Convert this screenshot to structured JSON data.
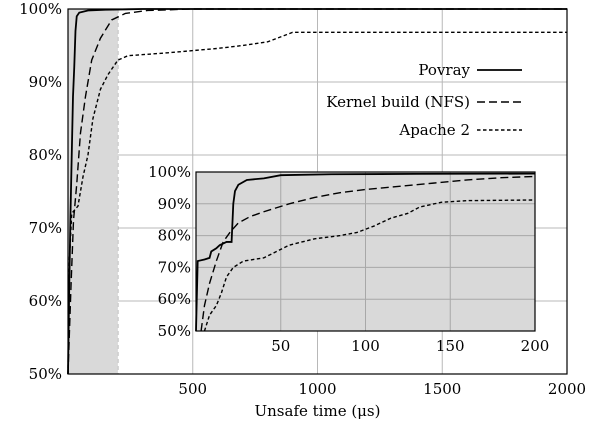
{
  "chart_data": {
    "type": "line",
    "title": "",
    "xlabel": "Unsafe time (μs)",
    "ylabel": "",
    "xlim": [
      0,
      2000
    ],
    "ylim": [
      50,
      100
    ],
    "x_ticks": [
      500,
      1000,
      1500,
      2000
    ],
    "y_ticks": [
      50,
      60,
      70,
      80,
      90,
      100
    ],
    "x_tick_labels": [
      "500",
      "1000",
      "1500",
      "2000"
    ],
    "y_tick_labels": [
      "50%",
      "60%",
      "70%",
      "80%",
      "90%",
      "100%"
    ],
    "grid": true,
    "legend_position": "right",
    "shaded_region": {
      "x": [
        0,
        200
      ],
      "color": "#d9d9d9"
    },
    "series": [
      {
        "name": "Povray",
        "style": "solid",
        "points": [
          [
            0,
            50
          ],
          [
            5,
            62
          ],
          [
            10,
            72
          ],
          [
            15,
            80
          ],
          [
            20,
            88
          ],
          [
            25,
            92
          ],
          [
            30,
            97
          ],
          [
            35,
            99
          ],
          [
            45,
            99.5
          ],
          [
            80,
            99.8
          ],
          [
            150,
            99.9
          ],
          [
            300,
            100
          ],
          [
            2000,
            100
          ]
        ]
      },
      {
        "name": "Kernel build (NFS)",
        "style": "dashed",
        "points": [
          [
            0,
            50
          ],
          [
            12,
            62
          ],
          [
            22,
            71
          ],
          [
            35,
            76
          ],
          [
            50,
            83
          ],
          [
            70,
            88
          ],
          [
            95,
            93
          ],
          [
            130,
            96
          ],
          [
            175,
            98.5
          ],
          [
            230,
            99.4
          ],
          [
            320,
            99.8
          ],
          [
            500,
            100
          ],
          [
            2000,
            100
          ]
        ]
      },
      {
        "name": "Apache 2",
        "style": "dotted",
        "points": [
          [
            0,
            50
          ],
          [
            6,
            66
          ],
          [
            15,
            72
          ],
          [
            40,
            73
          ],
          [
            60,
            77
          ],
          [
            80,
            80
          ],
          [
            100,
            85
          ],
          [
            130,
            89
          ],
          [
            160,
            91
          ],
          [
            200,
            93
          ],
          [
            240,
            93.6
          ],
          [
            400,
            94
          ],
          [
            600,
            94.6
          ],
          [
            700,
            95
          ],
          [
            800,
            95.5
          ],
          [
            900,
            96.8
          ],
          [
            2000,
            96.8
          ]
        ]
      }
    ],
    "inset": {
      "xlim": [
        0,
        200
      ],
      "ylim": [
        50,
        100
      ],
      "x_ticks": [
        50,
        100,
        150,
        200
      ],
      "y_ticks": [
        50,
        60,
        70,
        80,
        90,
        100
      ],
      "x_tick_labels": [
        "50",
        "100",
        "150",
        "200"
      ],
      "y_tick_labels": [
        "50%",
        "60%",
        "70%",
        "80%",
        "90%",
        "100%"
      ],
      "background": "#d9d9d9",
      "series": [
        {
          "name": "Povray",
          "style": "solid",
          "points": [
            [
              0,
              50
            ],
            [
              1,
              72
            ],
            [
              5,
              72.5
            ],
            [
              8,
              73
            ],
            [
              9,
              75
            ],
            [
              12,
              76
            ],
            [
              14,
              77
            ],
            [
              16,
              77.5
            ],
            [
              18,
              78
            ],
            [
              21,
              78
            ],
            [
              22,
              90
            ],
            [
              23,
              94
            ],
            [
              25,
              96
            ],
            [
              30,
              97.5
            ],
            [
              40,
              98
            ],
            [
              50,
              99
            ],
            [
              80,
              99.3
            ],
            [
              130,
              99.4
            ],
            [
              200,
              99.5
            ]
          ]
        },
        {
          "name": "Kernel build (NFS)",
          "style": "dashed",
          "points": [
            [
              3,
              50
            ],
            [
              5,
              58
            ],
            [
              8,
              65
            ],
            [
              12,
              72
            ],
            [
              16,
              78
            ],
            [
              20,
              81
            ],
            [
              25,
              84
            ],
            [
              32,
              86
            ],
            [
              40,
              87.5
            ],
            [
              55,
              90
            ],
            [
              70,
              92
            ],
            [
              85,
              93.5
            ],
            [
              100,
              94.5
            ],
            [
              120,
              95.5
            ],
            [
              140,
              96.5
            ],
            [
              160,
              97.5
            ],
            [
              180,
              98.2
            ],
            [
              200,
              98.6
            ]
          ]
        },
        {
          "name": "Apache 2",
          "style": "dotted",
          "points": [
            [
              5,
              50
            ],
            [
              8,
              55
            ],
            [
              12,
              58
            ],
            [
              15,
              62
            ],
            [
              18,
              67
            ],
            [
              22,
              70
            ],
            [
              28,
              72
            ],
            [
              40,
              73
            ],
            [
              55,
              77
            ],
            [
              70,
              79
            ],
            [
              85,
              80
            ],
            [
              95,
              81
            ],
            [
              105,
              83
            ],
            [
              115,
              85.5
            ],
            [
              125,
              87
            ],
            [
              132,
              89
            ],
            [
              145,
              90.5
            ],
            [
              160,
              91
            ],
            [
              200,
              91.2
            ]
          ]
        }
      ]
    }
  }
}
